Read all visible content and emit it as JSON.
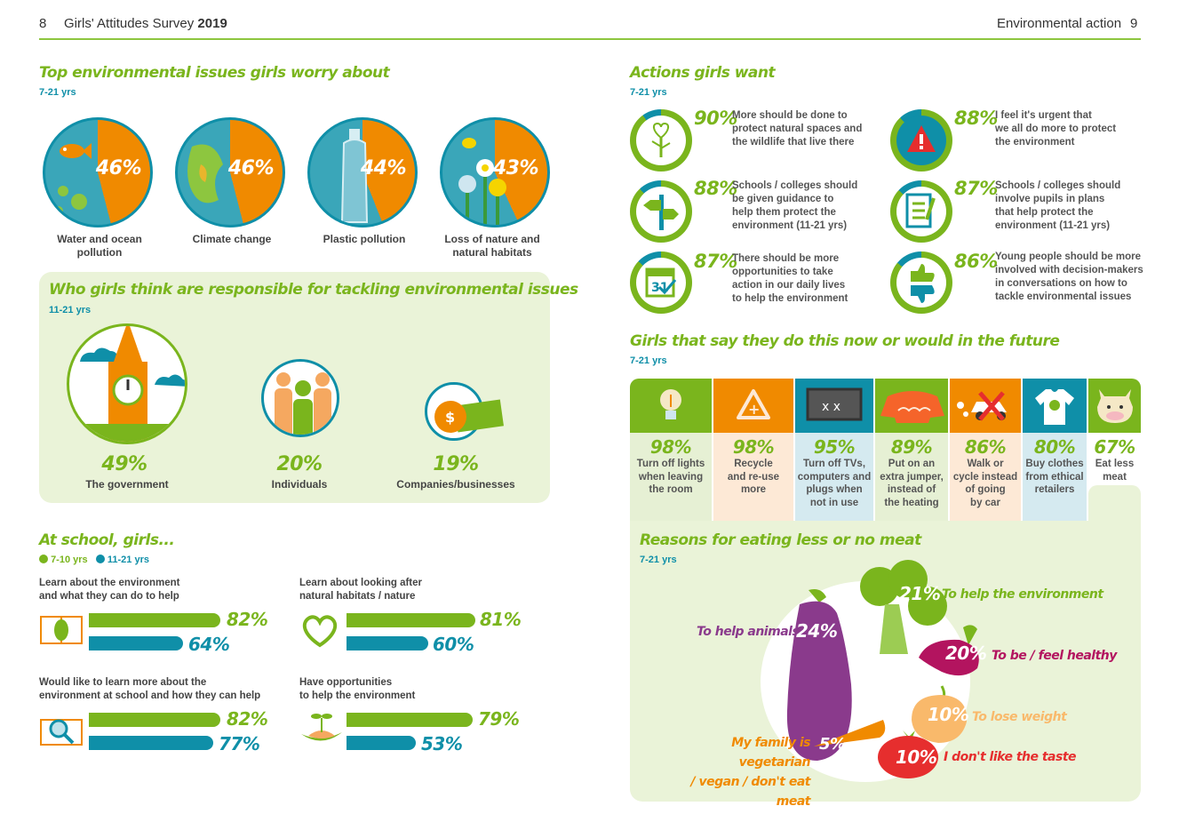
{
  "header": {
    "left_page_num": "8",
    "left_title_prefix": "Girls' Attitudes Survey",
    "left_title_year": "2019",
    "right_section": "Environmental action",
    "right_page_num": "9"
  },
  "worries": {
    "title": "Top environmental issues girls worry about",
    "age": "7-21 yrs",
    "items": [
      {
        "label": "Water and ocean pollution",
        "pct": "46%",
        "value": 46
      },
      {
        "label": "Climate change",
        "pct": "46%",
        "value": 46
      },
      {
        "label": "Plastic pollution",
        "pct": "44%",
        "value": 44
      },
      {
        "label": "Loss of nature and natural habitats",
        "pct": "43%",
        "value": 43
      }
    ]
  },
  "responsible": {
    "title": "Who girls think are responsible for tackling environmental issues",
    "age": "11-21 yrs",
    "items": [
      {
        "label": "The government",
        "pct": "49%"
      },
      {
        "label": "Individuals",
        "pct": "20%"
      },
      {
        "label": "Companies/businesses",
        "pct": "19%"
      }
    ]
  },
  "school": {
    "title": "At school, girls...",
    "legend": [
      {
        "label": "7-10 yrs",
        "color": "#7ab51d"
      },
      {
        "label": "11-21 yrs",
        "color": "#0f8fa8"
      }
    ],
    "items": [
      {
        "label_line1": "Learn about the environment",
        "label_line2": "and what they can do to help",
        "young": "82%",
        "young_value": 82,
        "old": "64%",
        "old_value": 64
      },
      {
        "label_line1": "Learn about looking after",
        "label_line2": "natural habitats / nature",
        "young": "81%",
        "young_value": 81,
        "old": "60%",
        "old_value": 60
      },
      {
        "label_line1": "Would like to learn more about the",
        "label_line2": "environment at school and how they can help",
        "young": "82%",
        "young_value": 82,
        "old": "77%",
        "old_value": 77
      },
      {
        "label_line1": "Have opportunities",
        "label_line2": "to help the environment",
        "young": "79%",
        "young_value": 79,
        "old": "53%",
        "old_value": 53
      }
    ]
  },
  "actions": {
    "title": "Actions girls want",
    "age": "7-21 yrs",
    "items": [
      {
        "pct": "90%",
        "value": 90,
        "lines": [
          "More should be done to",
          "protect natural spaces and",
          "the wildlife that live there"
        ]
      },
      {
        "pct": "88%",
        "value": 88,
        "lines": [
          "I feel it's urgent that",
          "we all do more to protect",
          "the environment"
        ]
      },
      {
        "pct": "88%",
        "value": 88,
        "lines": [
          "Schools / colleges should",
          "be given guidance to",
          "help them protect the",
          "environment (11-21 yrs)"
        ]
      },
      {
        "pct": "87%",
        "value": 87,
        "lines": [
          "Schools / colleges should",
          "involve pupils in plans",
          "that help protect the",
          "environment (11-21 yrs)"
        ]
      },
      {
        "pct": "87%",
        "value": 87,
        "lines": [
          "There should be more",
          "opportunities to take",
          "action in our daily lives",
          "to help the environment"
        ]
      },
      {
        "pct": "86%",
        "value": 86,
        "lines": [
          "Young people should be more",
          "involved with decision-makers",
          "in conversations on how to",
          "tackle environmental issues"
        ]
      }
    ]
  },
  "doing": {
    "title": "Girls that say they do this now or would in the future",
    "age": "7-21 yrs",
    "items": [
      {
        "pct": "98%",
        "lines": [
          "Turn off lights",
          "when leaving",
          "the room"
        ],
        "icon_color": "#7ab51d",
        "bg": "#e6f0d4"
      },
      {
        "pct": "98%",
        "lines": [
          "Recycle",
          "and re-use",
          "more"
        ],
        "icon_color": "#f08a00",
        "bg": "#fde9d6"
      },
      {
        "pct": "95%",
        "lines": [
          "Turn off TVs,",
          "computers and",
          "plugs when",
          "not in use"
        ],
        "icon_color": "#0f8fa8",
        "bg": "#d5eaf0"
      },
      {
        "pct": "89%",
        "lines": [
          "Put on an",
          "extra jumper,",
          "instead of",
          "the heating"
        ],
        "icon_color": "#7ab51d",
        "bg": "#e6f0d4"
      },
      {
        "pct": "86%",
        "lines": [
          "Walk or",
          "cycle instead",
          "of going",
          "by car"
        ],
        "icon_color": "#f08a00",
        "bg": "#fde9d6"
      },
      {
        "pct": "80%",
        "lines": [
          "Buy clothes",
          "from ethical",
          "retailers"
        ],
        "icon_color": "#0f8fa8",
        "bg": "#d5eaf0"
      },
      {
        "pct": "67%",
        "lines": [
          "Eat less",
          "meat"
        ],
        "icon_color": "#7ab51d",
        "bg": "#ffffff"
      }
    ]
  },
  "meat": {
    "title": "Reasons for eating less or no meat",
    "age": "7-21 yrs",
    "items": [
      {
        "pct": "24%",
        "label": "To help animals"
      },
      {
        "pct": "21%",
        "label": "To help the environment"
      },
      {
        "pct": "20%",
        "label": "To be / feel healthy"
      },
      {
        "pct": "10%",
        "label": "To lose weight"
      },
      {
        "pct": "5%",
        "label_line1": "My family is vegetarian",
        "label_line2": "/ vegan / don't eat meat"
      },
      {
        "pct": "10%",
        "label": "I don't like the taste"
      }
    ]
  },
  "icons": [
    "fish-icon",
    "globe-icon",
    "bottle-icon",
    "flower-icon",
    "clock-tower-icon",
    "people-icon",
    "money-icon",
    "book-leaf-icon",
    "recycle-heart-icon",
    "magnifier-book-icon",
    "sprout-hand-icon",
    "heart-tree-icon",
    "warning-globe-icon",
    "signpost-icon",
    "checklist-icon",
    "calendar-check-icon",
    "thumbs-icon",
    "lightbulb-icon",
    "recycle-icon",
    "tv-icon",
    "jumper-icon",
    "car-icon",
    "tshirt-icon",
    "cow-icon",
    "aubergine-icon",
    "broccoli-icon",
    "beetroot-icon",
    "onion-icon",
    "carrot-icon",
    "tomato-icon"
  ]
}
